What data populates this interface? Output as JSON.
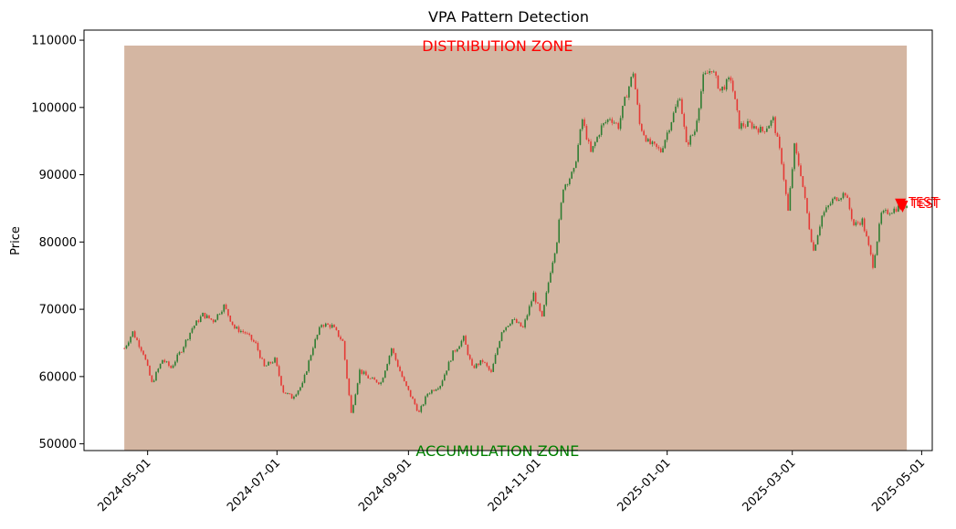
{
  "chart_data": {
    "type": "candlestick",
    "title": "VPA Pattern Detection",
    "ylabel": "Price",
    "xlabel": "",
    "ylim": [
      49000,
      111500
    ],
    "xlim": [
      "2024-04-01",
      "2025-05-06"
    ],
    "y_ticks": [
      50000,
      60000,
      70000,
      80000,
      90000,
      100000,
      110000
    ],
    "y_tick_labels": [
      "50000",
      "60000",
      "70000",
      "80000",
      "90000",
      "100000",
      "110000"
    ],
    "x_ticks": [
      "2024-05-01",
      "2024-07-01",
      "2024-09-01",
      "2024-11-01",
      "2025-01-01",
      "2025-03-01",
      "2025-05-01"
    ],
    "grid": false,
    "colors": {
      "up": "#2e7d32",
      "down": "#e53935",
      "zone": "#d4b6a2",
      "marker": "#ff0000",
      "accumulation": "#008000",
      "distribution": "#ff0000"
    },
    "zone": {
      "x_start": "2024-04-20",
      "x_end": "2025-04-24",
      "y_low": 49000,
      "y_high": 109200
    },
    "annotations": [
      {
        "text": "DISTRIBUTION ZONE",
        "x": "2024-10-13",
        "y": 109200,
        "color": "#ff0000"
      },
      {
        "text": "ACCUMULATION ZONE",
        "x": "2024-10-13",
        "y": 49000,
        "color": "#008000"
      }
    ],
    "markers": [
      {
        "date": "2025-04-21",
        "y": 85500,
        "label": "TEST"
      },
      {
        "date": "2025-04-22",
        "y": 85200,
        "label": "TEST"
      }
    ],
    "anchors": [
      [
        "2024-04-20",
        64200
      ],
      [
        "2024-04-24",
        66600
      ],
      [
        "2024-04-29",
        63500
      ],
      [
        "2024-05-03",
        59000
      ],
      [
        "2024-05-08",
        62500
      ],
      [
        "2024-05-12",
        61300
      ],
      [
        "2024-05-17",
        64000
      ],
      [
        "2024-05-22",
        67200
      ],
      [
        "2024-05-27",
        69200
      ],
      [
        "2024-06-01",
        68300
      ],
      [
        "2024-06-06",
        70500
      ],
      [
        "2024-06-11",
        67200
      ],
      [
        "2024-06-16",
        66500
      ],
      [
        "2024-06-21",
        64800
      ],
      [
        "2024-06-25",
        61400
      ],
      [
        "2024-06-30",
        62500
      ],
      [
        "2024-07-04",
        57800
      ],
      [
        "2024-07-08",
        56900
      ],
      [
        "2024-07-13",
        58800
      ],
      [
        "2024-07-18",
        64500
      ],
      [
        "2024-07-22",
        67800
      ],
      [
        "2024-07-27",
        67500
      ],
      [
        "2024-08-01",
        65200
      ],
      [
        "2024-08-05",
        54500
      ],
      [
        "2024-08-09",
        60900
      ],
      [
        "2024-08-14",
        59600
      ],
      [
        "2024-08-19",
        59100
      ],
      [
        "2024-08-24",
        64200
      ],
      [
        "2024-08-30",
        59100
      ],
      [
        "2024-09-06",
        54600
      ],
      [
        "2024-09-10",
        57500
      ],
      [
        "2024-09-16",
        58800
      ],
      [
        "2024-09-22",
        63500
      ],
      [
        "2024-09-27",
        65700
      ],
      [
        "2024-10-01",
        61300
      ],
      [
        "2024-10-06",
        62300
      ],
      [
        "2024-10-10",
        60500
      ],
      [
        "2024-10-15",
        66800
      ],
      [
        "2024-10-20",
        68500
      ],
      [
        "2024-10-25",
        67200
      ],
      [
        "2024-10-30",
        72300
      ],
      [
        "2024-11-03",
        68600
      ],
      [
        "2024-11-07",
        75800
      ],
      [
        "2024-11-10",
        80300
      ],
      [
        "2024-11-13",
        88200
      ],
      [
        "2024-11-18",
        90500
      ],
      [
        "2024-11-22",
        98200
      ],
      [
        "2024-11-26",
        93200
      ],
      [
        "2024-12-01",
        97100
      ],
      [
        "2024-12-05",
        98500
      ],
      [
        "2024-12-09",
        97200
      ],
      [
        "2024-12-12",
        101000
      ],
      [
        "2024-12-16",
        105300
      ],
      [
        "2024-12-19",
        97500
      ],
      [
        "2024-12-23",
        94800
      ],
      [
        "2024-12-29",
        93500
      ],
      [
        "2025-01-03",
        98100
      ],
      [
        "2025-01-07",
        101800
      ],
      [
        "2025-01-10",
        94400
      ],
      [
        "2025-01-14",
        96500
      ],
      [
        "2025-01-18",
        104400
      ],
      [
        "2025-01-22",
        105800
      ],
      [
        "2025-01-26",
        102500
      ],
      [
        "2025-01-31",
        104300
      ],
      [
        "2025-02-04",
        97300
      ],
      [
        "2025-02-09",
        97500
      ],
      [
        "2025-02-15",
        96500
      ],
      [
        "2025-02-20",
        98200
      ],
      [
        "2025-02-24",
        92000
      ],
      [
        "2025-02-27",
        84500
      ],
      [
        "2025-03-02",
        94200
      ],
      [
        "2025-03-05",
        90200
      ],
      [
        "2025-03-09",
        82200
      ],
      [
        "2025-03-11",
        78700
      ],
      [
        "2025-03-15",
        83900
      ],
      [
        "2025-03-20",
        86200
      ],
      [
        "2025-03-26",
        87300
      ],
      [
        "2025-03-30",
        82500
      ],
      [
        "2025-04-03",
        83200
      ],
      [
        "2025-04-08",
        76600
      ],
      [
        "2025-04-12",
        84100
      ],
      [
        "2025-04-17",
        84700
      ],
      [
        "2025-04-21",
        85300
      ],
      [
        "2025-04-24",
        85500
      ]
    ]
  }
}
